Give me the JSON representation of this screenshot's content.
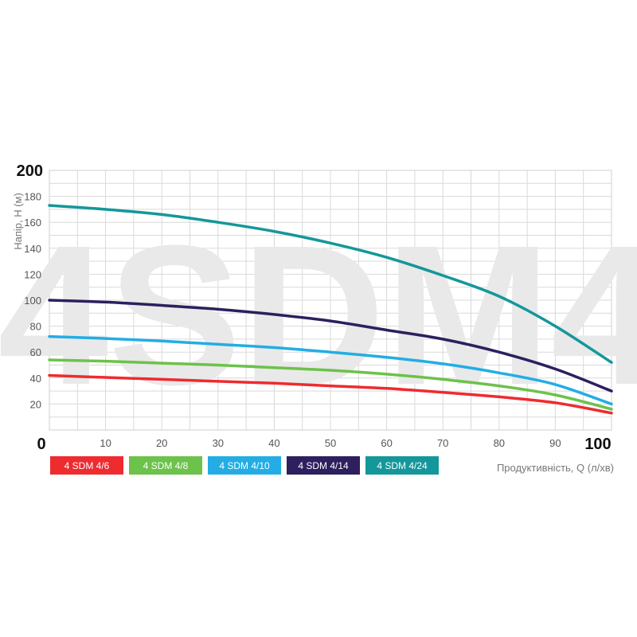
{
  "watermark": "4SDM4",
  "chart_data": {
    "type": "line",
    "xlabel": "Продуктивність, Q (л/хв)",
    "ylabel": "Напір, H (м)",
    "xlim": [
      0,
      100
    ],
    "ylim": [
      0,
      200
    ],
    "x_ticks": [
      0,
      10,
      20,
      30,
      40,
      50,
      60,
      70,
      80,
      90,
      100
    ],
    "y_ticks": [
      20,
      40,
      60,
      80,
      100,
      120,
      140,
      160,
      180,
      200
    ],
    "x_tick_labels": [
      "0",
      "10",
      "20",
      "30",
      "40",
      "50",
      "60",
      "70",
      "80",
      "90",
      "100"
    ],
    "y_tick_labels": [
      "20",
      "40",
      "60",
      "80",
      "100",
      "120",
      "140",
      "160",
      "180",
      "200"
    ],
    "grid": true,
    "legend_position": "bottom-left",
    "series": [
      {
        "name": "4 SDM 4/6",
        "color": "#ee2b2f",
        "x": [
          0,
          10,
          20,
          30,
          40,
          50,
          60,
          70,
          80,
          90,
          100
        ],
        "y": [
          42,
          40.5,
          39,
          37.5,
          36,
          34,
          32,
          29,
          25.5,
          21,
          13
        ]
      },
      {
        "name": "4 SDM 4/8",
        "color": "#6cc24a",
        "x": [
          0,
          10,
          20,
          30,
          40,
          50,
          60,
          70,
          80,
          90,
          100
        ],
        "y": [
          54,
          53,
          51.5,
          50,
          48,
          46,
          43,
          39,
          34,
          27,
          16
        ]
      },
      {
        "name": "4 SDM 4/10",
        "color": "#23ade4",
        "x": [
          0,
          10,
          20,
          30,
          40,
          50,
          60,
          70,
          80,
          90,
          100
        ],
        "y": [
          72,
          70.5,
          68.5,
          66,
          63.5,
          60,
          56,
          51,
          44,
          35,
          20
        ]
      },
      {
        "name": "4 SDM 4/14",
        "color": "#2e1f5e",
        "x": [
          0,
          10,
          20,
          30,
          40,
          50,
          60,
          70,
          80,
          90,
          100
        ],
        "y": [
          100,
          98.5,
          96,
          93,
          89,
          84,
          77,
          70,
          60,
          47,
          30
        ]
      },
      {
        "name": "4 SDM 4/24",
        "color": "#14979a",
        "x": [
          0,
          10,
          20,
          30,
          40,
          50,
          60,
          70,
          80,
          90,
          100
        ],
        "y": [
          173,
          170,
          166,
          160,
          153,
          144,
          133,
          119,
          103,
          80,
          52
        ]
      }
    ]
  }
}
